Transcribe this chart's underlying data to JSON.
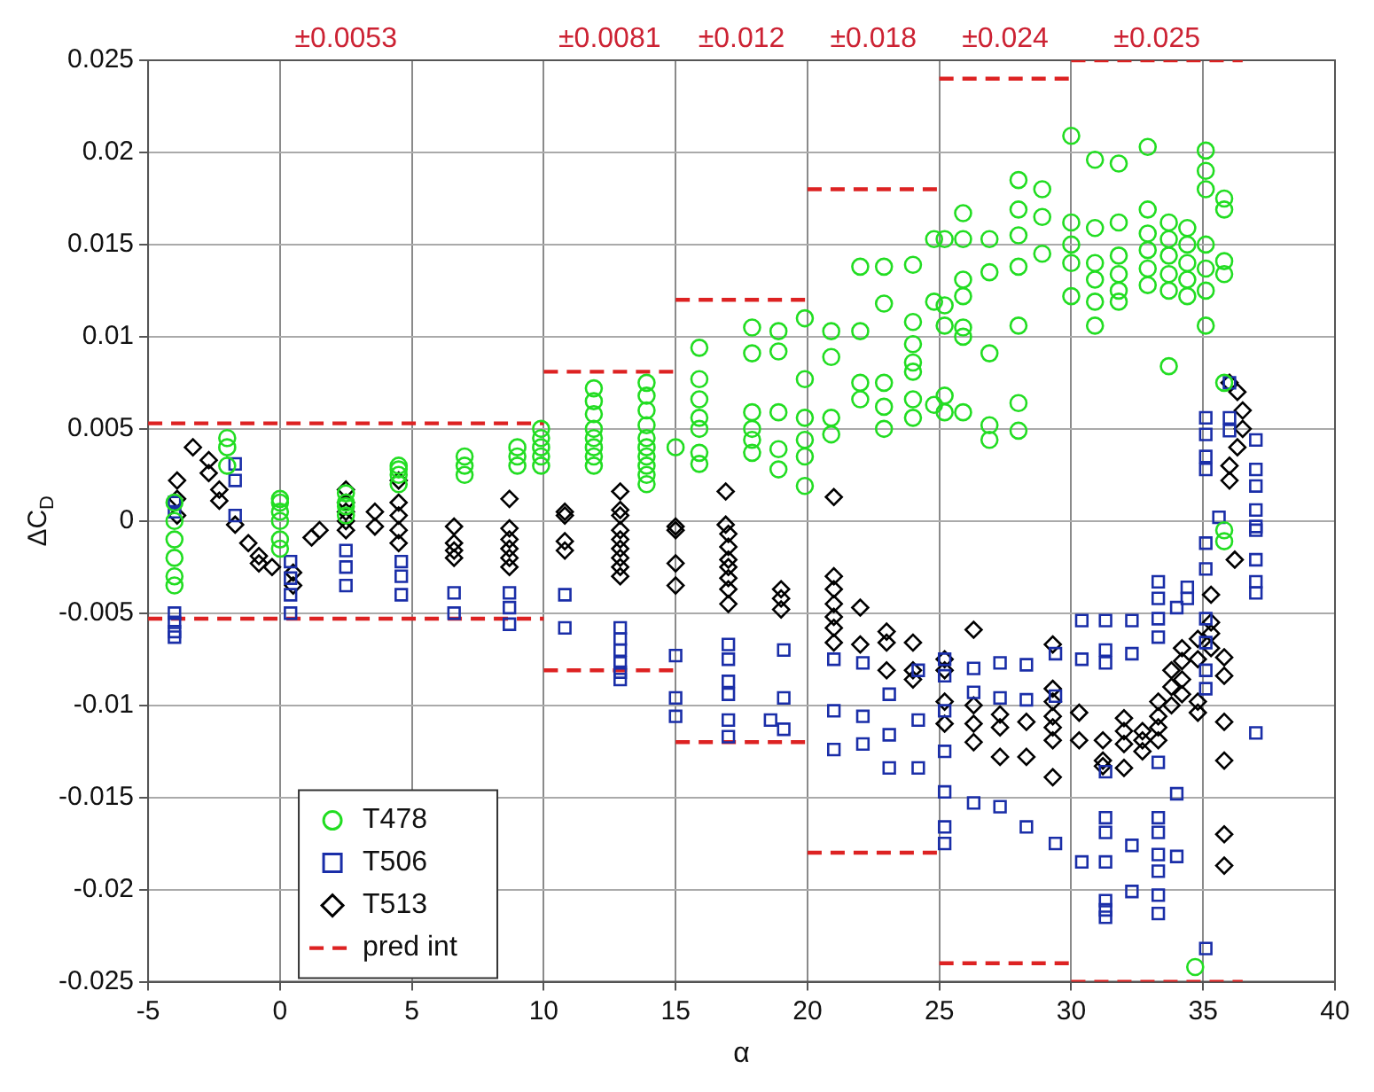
{
  "chart_data": {
    "type": "scatter",
    "xlabel": "α",
    "ylabel": "ΔC$_{D}$",
    "xlim": [
      -5,
      40
    ],
    "xticks": [
      -5,
      0,
      5,
      10,
      15,
      20,
      25,
      30,
      35,
      40
    ],
    "ylim": [
      -0.025,
      0.025
    ],
    "yticks": [
      -0.025,
      -0.02,
      -0.015,
      -0.01,
      -0.005,
      0,
      0.005,
      0.01,
      0.015,
      0.02,
      0.025
    ],
    "grid": true,
    "legend": "bottom left",
    "annotations": [
      "±0.0053",
      "±0.0081",
      "±0.012",
      "±0.018",
      "±0.024",
      "±0.025"
    ],
    "series": [
      {
        "name": "T478",
        "type": "scatter",
        "marker": "circle",
        "color": "#22dd22",
        "x": [
          -4,
          -4,
          -4,
          -4,
          -4,
          -4,
          -2,
          -2,
          -2,
          0,
          0,
          0,
          0,
          0,
          0,
          2.5,
          2.5,
          2.5,
          2.5,
          4.5,
          4.5,
          4.5,
          4.5,
          7,
          7,
          7,
          9,
          9,
          9,
          9.9,
          9.9,
          9.9,
          9.9,
          9.9,
          11.9,
          11.9,
          11.9,
          11.9,
          11.9,
          11.9,
          11.9,
          11.9,
          13.9,
          13.9,
          13.9,
          13.9,
          13.9,
          13.9,
          13.9,
          13.9,
          13.9,
          13.9,
          15,
          15.9,
          15.9,
          15.9,
          15.9,
          15.9,
          15.9,
          15.9,
          17.9,
          17.9,
          17.9,
          17.9,
          17.9,
          17.9,
          18.9,
          18.9,
          18.9,
          18.9,
          18.9,
          19.9,
          19.9,
          19.9,
          19.9,
          19.9,
          19.9,
          20.9,
          20.9,
          20.9,
          20.9,
          22,
          22,
          22,
          22,
          22.9,
          22.9,
          22.9,
          22.9,
          22.9,
          24,
          24,
          24,
          24,
          24,
          24,
          24,
          24.8,
          24.8,
          24.8,
          25.2,
          25.2,
          25.2,
          25.2,
          25.2,
          25.9,
          25.9,
          25.9,
          25.9,
          25.9,
          25.9,
          25.9,
          26.9,
          26.9,
          26.9,
          26.9,
          26.9,
          28,
          28,
          28,
          28,
          28,
          28,
          28,
          28.9,
          28.9,
          28.9,
          30,
          30,
          30,
          30,
          30,
          30.9,
          30.9,
          30.9,
          30.9,
          30.9,
          30.9,
          31.8,
          31.8,
          31.8,
          31.8,
          31.8,
          31.8,
          32.9,
          32.9,
          32.9,
          32.9,
          32.9,
          32.9,
          33.7,
          33.7,
          33.7,
          33.7,
          33.7,
          33.7,
          34.4,
          34.4,
          34.4,
          34.4,
          34.4,
          35.1,
          35.1,
          35.1,
          35.1,
          35.1,
          35.1,
          35.1,
          35.8,
          35.8,
          35.8,
          35.8,
          35.8,
          35.8,
          35.8,
          34.7
        ],
        "values": [
          0.001,
          0,
          -0.001,
          -0.002,
          -0.003,
          -0.0035,
          0.0045,
          0.004,
          0.003,
          0.0012,
          0.001,
          0.0005,
          0,
          -0.001,
          -0.0015,
          0.0015,
          0.001,
          0.0008,
          0.0003,
          0.003,
          0.0028,
          0.0025,
          0.002,
          0.0035,
          0.003,
          0.0025,
          0.004,
          0.0035,
          0.003,
          0.005,
          0.0045,
          0.004,
          0.0035,
          0.003,
          0.0072,
          0.0065,
          0.0058,
          0.005,
          0.0045,
          0.004,
          0.0035,
          0.003,
          0.0075,
          0.0068,
          0.006,
          0.0052,
          0.0045,
          0.004,
          0.0035,
          0.003,
          0.0025,
          0.002,
          0.004,
          0.0094,
          0.0077,
          0.0066,
          0.0056,
          0.005,
          0.0037,
          0.0031,
          0.0105,
          0.0091,
          0.0059,
          0.005,
          0.0044,
          0.0037,
          0.0103,
          0.0092,
          0.0059,
          0.0039,
          0.0028,
          0.011,
          0.0077,
          0.0056,
          0.0044,
          0.0035,
          0.0019,
          0.0103,
          0.0089,
          0.0056,
          0.0047,
          0.0138,
          0.0103,
          0.0075,
          0.0066,
          0.0138,
          0.0118,
          0.0075,
          0.0062,
          0.005,
          0.0139,
          0.0108,
          0.0096,
          0.0086,
          0.0081,
          0.0066,
          0.0056,
          0.0153,
          0.0119,
          0.0063,
          0.0153,
          0.0117,
          0.0106,
          0.0068,
          0.0059,
          0.0167,
          0.0153,
          0.0131,
          0.0122,
          0.0105,
          0.01,
          0.0059,
          0.0153,
          0.0135,
          0.0091,
          0.0052,
          0.0044,
          0.0185,
          0.0169,
          0.0155,
          0.0138,
          0.0106,
          0.0064,
          0.0049,
          0.018,
          0.0165,
          0.0145,
          0.0209,
          0.0162,
          0.015,
          0.014,
          0.0122,
          0.0196,
          0.0159,
          0.014,
          0.0131,
          0.0119,
          0.0106,
          0.0194,
          0.0162,
          0.0144,
          0.0134,
          0.0125,
          0.0119,
          0.0203,
          0.0169,
          0.0156,
          0.0147,
          0.0137,
          0.0128,
          0.0162,
          0.0153,
          0.0144,
          0.0134,
          0.0125,
          0.0084,
          0.0159,
          0.015,
          0.014,
          0.0131,
          0.0122,
          0.0201,
          0.019,
          0.018,
          0.015,
          0.0137,
          0.0125,
          0.0106,
          0.0175,
          0.0169,
          0.0141,
          0.0134,
          0.0075,
          -0.0005,
          -0.0011,
          -0.0242
        ]
      },
      {
        "name": "T506",
        "type": "scatter",
        "marker": "square",
        "color": "#1a2ea8",
        "x": [
          -4,
          -4,
          -4,
          -4,
          -4,
          -4,
          -1.7,
          -1.7,
          -1.7,
          0.4,
          0.4,
          0.4,
          0.4,
          2.5,
          2.5,
          2.5,
          4.6,
          4.6,
          4.6,
          6.6,
          6.6,
          8.7,
          8.7,
          8.7,
          10.8,
          10.8,
          12.9,
          12.9,
          12.9,
          12.9,
          12.9,
          12.9,
          15,
          15,
          15,
          17,
          17,
          17,
          17,
          17,
          17,
          19.1,
          19.1,
          19.1,
          18.6,
          21,
          21,
          21,
          22.1,
          22.1,
          22.1,
          23.1,
          23.1,
          23.1,
          24.2,
          24.2,
          24.2,
          25.2,
          25.2,
          25.2,
          25.2,
          25.2,
          25.2,
          25.2,
          26.3,
          26.3,
          26.3,
          27.3,
          27.3,
          27.3,
          28.3,
          28.3,
          28.3,
          29.4,
          29.4,
          29.4,
          30.4,
          30.4,
          30.4,
          31.3,
          31.3,
          31.3,
          31.3,
          31.3,
          31.3,
          31.3,
          31.3,
          31.3,
          31.3,
          32.3,
          32.3,
          32.3,
          32.3,
          33.3,
          33.3,
          33.3,
          33.3,
          33.3,
          33.3,
          33.3,
          33.3,
          33.3,
          33.3,
          33.3,
          34,
          34,
          34,
          34.4,
          34.4,
          35.1,
          35.1,
          35.1,
          35.1,
          35.1,
          35.1,
          35.1,
          35.1,
          35.1,
          35.1,
          35.1,
          35.6,
          36,
          36,
          36,
          37,
          37,
          37,
          37,
          37,
          37,
          37,
          37,
          37,
          37
        ],
        "values": [
          0.001,
          0.0005,
          -0.005,
          -0.0055,
          -0.006,
          -0.0063,
          0.0031,
          0.0022,
          0.0003,
          -0.0022,
          -0.0031,
          -0.004,
          -0.005,
          -0.0016,
          -0.0025,
          -0.0035,
          -0.0022,
          -0.003,
          -0.004,
          -0.0039,
          -0.005,
          -0.0039,
          -0.0047,
          -0.0056,
          -0.004,
          -0.0058,
          -0.0058,
          -0.0064,
          -0.007,
          -0.0077,
          -0.0082,
          -0.0086,
          -0.0073,
          -0.0096,
          -0.0106,
          -0.0067,
          -0.0075,
          -0.0087,
          -0.0094,
          -0.0108,
          -0.0117,
          -0.007,
          -0.0096,
          -0.0113,
          -0.0108,
          -0.0075,
          -0.0103,
          -0.0124,
          -0.0077,
          -0.0106,
          -0.0121,
          -0.0094,
          -0.0116,
          -0.0134,
          -0.0081,
          -0.0108,
          -0.0134,
          -0.0075,
          -0.0084,
          -0.0103,
          -0.0125,
          -0.0147,
          -0.0166,
          -0.0175,
          -0.008,
          -0.0093,
          -0.0153,
          -0.0077,
          -0.0096,
          -0.0155,
          -0.0078,
          -0.0097,
          -0.0166,
          -0.0072,
          -0.0095,
          -0.0175,
          -0.0054,
          -0.0075,
          -0.0185,
          -0.0054,
          -0.007,
          -0.0077,
          -0.0136,
          -0.0161,
          -0.0169,
          -0.0185,
          -0.0206,
          -0.0211,
          -0.0215,
          -0.0054,
          -0.0072,
          -0.0176,
          -0.0201,
          -0.0033,
          -0.0042,
          -0.0053,
          -0.0063,
          -0.0131,
          -0.0161,
          -0.0169,
          -0.0181,
          -0.019,
          -0.0203,
          -0.0213,
          -0.0047,
          -0.0148,
          -0.0182,
          -0.0036,
          -0.0042,
          0.0056,
          0.0047,
          0.0035,
          0.0028,
          -0.0012,
          -0.0026,
          -0.0053,
          -0.0066,
          -0.0081,
          -0.0091,
          -0.0232,
          0.0002,
          0.0075,
          0.0056,
          0.0049,
          0.0044,
          0.0028,
          0.0019,
          0.0006,
          -0.0003,
          -0.0005,
          -0.0021,
          -0.0033,
          -0.0039,
          -0.0115
        ]
      },
      {
        "name": "T513",
        "type": "scatter",
        "marker": "diamond",
        "color": "#000000",
        "x": [
          -3.9,
          -3.9,
          -3.9,
          -3.3,
          -2.7,
          -2.7,
          -2.3,
          -2.3,
          -1.7,
          -1.2,
          -0.8,
          -0.8,
          -0.3,
          0.5,
          0.5,
          1.2,
          1.5,
          2.5,
          2.5,
          2.5,
          2.5,
          2.5,
          3.6,
          3.6,
          4.5,
          4.5,
          4.5,
          4.5,
          4.5,
          6.6,
          6.6,
          6.6,
          6.6,
          8.7,
          8.7,
          8.7,
          8.7,
          8.7,
          8.7,
          10.8,
          10.8,
          10.8,
          10.8,
          12.9,
          12.9,
          12.9,
          12.9,
          12.9,
          12.9,
          12.9,
          12.9,
          12.9,
          15,
          15,
          15,
          15,
          16.9,
          16.9,
          17,
          17,
          17,
          17,
          17,
          17,
          17,
          19,
          19,
          19,
          21,
          21,
          21,
          21,
          21,
          21,
          21,
          22,
          22,
          23,
          23,
          23,
          24,
          24,
          24,
          25.2,
          25.2,
          25.2,
          25.2,
          26.3,
          26.3,
          26.3,
          26.3,
          27.3,
          27.3,
          27.3,
          28.3,
          28.3,
          29.3,
          29.3,
          29.3,
          29.3,
          29.3,
          29.3,
          29.3,
          30.3,
          30.3,
          31.2,
          31.2,
          31.2,
          32,
          32,
          32,
          32,
          32.7,
          32.7,
          32.7,
          33.3,
          33.3,
          33.3,
          33.3,
          33.8,
          33.8,
          33.8,
          34.2,
          34.2,
          34.2,
          34.2,
          34.8,
          34.8,
          34.8,
          34.8,
          35.3,
          35.3,
          35.3,
          35.3,
          35.8,
          35.8,
          35.8,
          35.8,
          35.8,
          35.8,
          36.2,
          36,
          36,
          36,
          36.3,
          36.3,
          36.5,
          36.5
        ],
        "values": [
          0.0022,
          0.0012,
          0.0003,
          0.004,
          0.0033,
          0.0026,
          0.0017,
          0.0011,
          -0.0002,
          -0.0012,
          -0.0019,
          -0.0023,
          -0.0025,
          -0.0028,
          -0.0035,
          -0.0009,
          -0.0005,
          0.0017,
          0.001,
          0.0005,
          0,
          -0.0005,
          0.0005,
          -0.0003,
          0.0022,
          0.001,
          0.0003,
          -0.0005,
          -0.0012,
          -0.0003,
          -0.0012,
          -0.0016,
          -0.002,
          0.0012,
          -0.0004,
          -0.001,
          -0.0015,
          -0.002,
          -0.0025,
          0.0005,
          0.0003,
          -0.0011,
          -0.0016,
          0.0016,
          0.0006,
          0.0003,
          -0.0005,
          -0.001,
          -0.0015,
          -0.002,
          -0.0025,
          -0.003,
          -0.0003,
          -0.0005,
          -0.0023,
          -0.0035,
          0.0016,
          -0.0002,
          -0.0007,
          -0.0014,
          -0.0021,
          -0.0025,
          -0.0031,
          -0.0037,
          -0.0045,
          -0.0037,
          -0.0042,
          -0.0048,
          0.0013,
          -0.003,
          -0.0037,
          -0.0045,
          -0.0052,
          -0.0058,
          -0.0066,
          -0.0047,
          -0.0067,
          -0.006,
          -0.0066,
          -0.0081,
          -0.0066,
          -0.0081,
          -0.0086,
          -0.0075,
          -0.0081,
          -0.0098,
          -0.011,
          -0.0059,
          -0.01,
          -0.011,
          -0.012,
          -0.0105,
          -0.0112,
          -0.0128,
          -0.0109,
          -0.0128,
          -0.0067,
          -0.0091,
          -0.0098,
          -0.0106,
          -0.0112,
          -0.0119,
          -0.0139,
          -0.0104,
          -0.0119,
          -0.0119,
          -0.013,
          -0.0133,
          -0.0107,
          -0.0114,
          -0.0121,
          -0.0134,
          -0.0114,
          -0.0119,
          -0.0125,
          -0.0098,
          -0.0106,
          -0.0112,
          -0.0119,
          -0.0081,
          -0.009,
          -0.01,
          -0.0069,
          -0.0076,
          -0.0086,
          -0.0094,
          -0.0064,
          -0.0075,
          -0.0098,
          -0.0104,
          -0.004,
          -0.0055,
          -0.0061,
          -0.0069,
          -0.0074,
          -0.0084,
          -0.0109,
          -0.013,
          -0.017,
          -0.0187,
          -0.0021,
          0.0075,
          0.003,
          0.0022,
          0.007,
          0.004,
          0.006,
          0.005
        ]
      },
      {
        "name": "pred int",
        "type": "line",
        "marker": "none",
        "line_style": "dashed",
        "color": "#dd2222",
        "x": [
          -5,
          10
        ],
        "values": [
          0.0053,
          0.0053
        ]
      },
      {
        "type": "line",
        "marker": "none",
        "line_style": "dashed",
        "color": "#dd2222",
        "x": [
          10,
          15
        ],
        "values": [
          0.0081,
          0.0081
        ]
      },
      {
        "type": "line",
        "marker": "none",
        "line_style": "dashed",
        "color": "#dd2222",
        "x": [
          15,
          20
        ],
        "values": [
          0.012,
          0.012
        ]
      },
      {
        "type": "line",
        "marker": "none",
        "line_style": "dashed",
        "color": "#dd2222",
        "x": [
          20,
          25
        ],
        "values": [
          0.018,
          0.018
        ]
      },
      {
        "type": "line",
        "marker": "none",
        "line_style": "dashed",
        "color": "#dd2222",
        "x": [
          25,
          30
        ],
        "values": [
          0.024,
          0.024
        ]
      },
      {
        "type": "line",
        "marker": "none",
        "line_style": "dashed",
        "color": "#dd2222",
        "x": [
          30,
          36.5
        ],
        "values": [
          0.025,
          0.025
        ]
      },
      {
        "type": "line",
        "marker": "none",
        "line_style": "dashed",
        "color": "#dd2222",
        "x": [
          -5,
          10
        ],
        "values": [
          -0.0053,
          -0.0053
        ]
      },
      {
        "type": "line",
        "marker": "none",
        "line_style": "dashed",
        "color": "#dd2222",
        "x": [
          10,
          15
        ],
        "values": [
          -0.0081,
          -0.0081
        ]
      },
      {
        "type": "line",
        "marker": "none",
        "line_style": "dashed",
        "color": "#dd2222",
        "x": [
          15,
          20
        ],
        "values": [
          -0.012,
          -0.012
        ]
      },
      {
        "type": "line",
        "marker": "none",
        "line_style": "dashed",
        "color": "#dd2222",
        "x": [
          20,
          25
        ],
        "values": [
          -0.018,
          -0.018
        ]
      },
      {
        "type": "line",
        "marker": "none",
        "line_style": "dashed",
        "color": "#dd2222",
        "x": [
          25,
          30
        ],
        "values": [
          -0.024,
          -0.024
        ]
      },
      {
        "type": "line",
        "marker": "none",
        "line_style": "dashed",
        "color": "#dd2222",
        "x": [
          30,
          36.5
        ],
        "values": [
          -0.025,
          -0.025
        ]
      }
    ]
  }
}
